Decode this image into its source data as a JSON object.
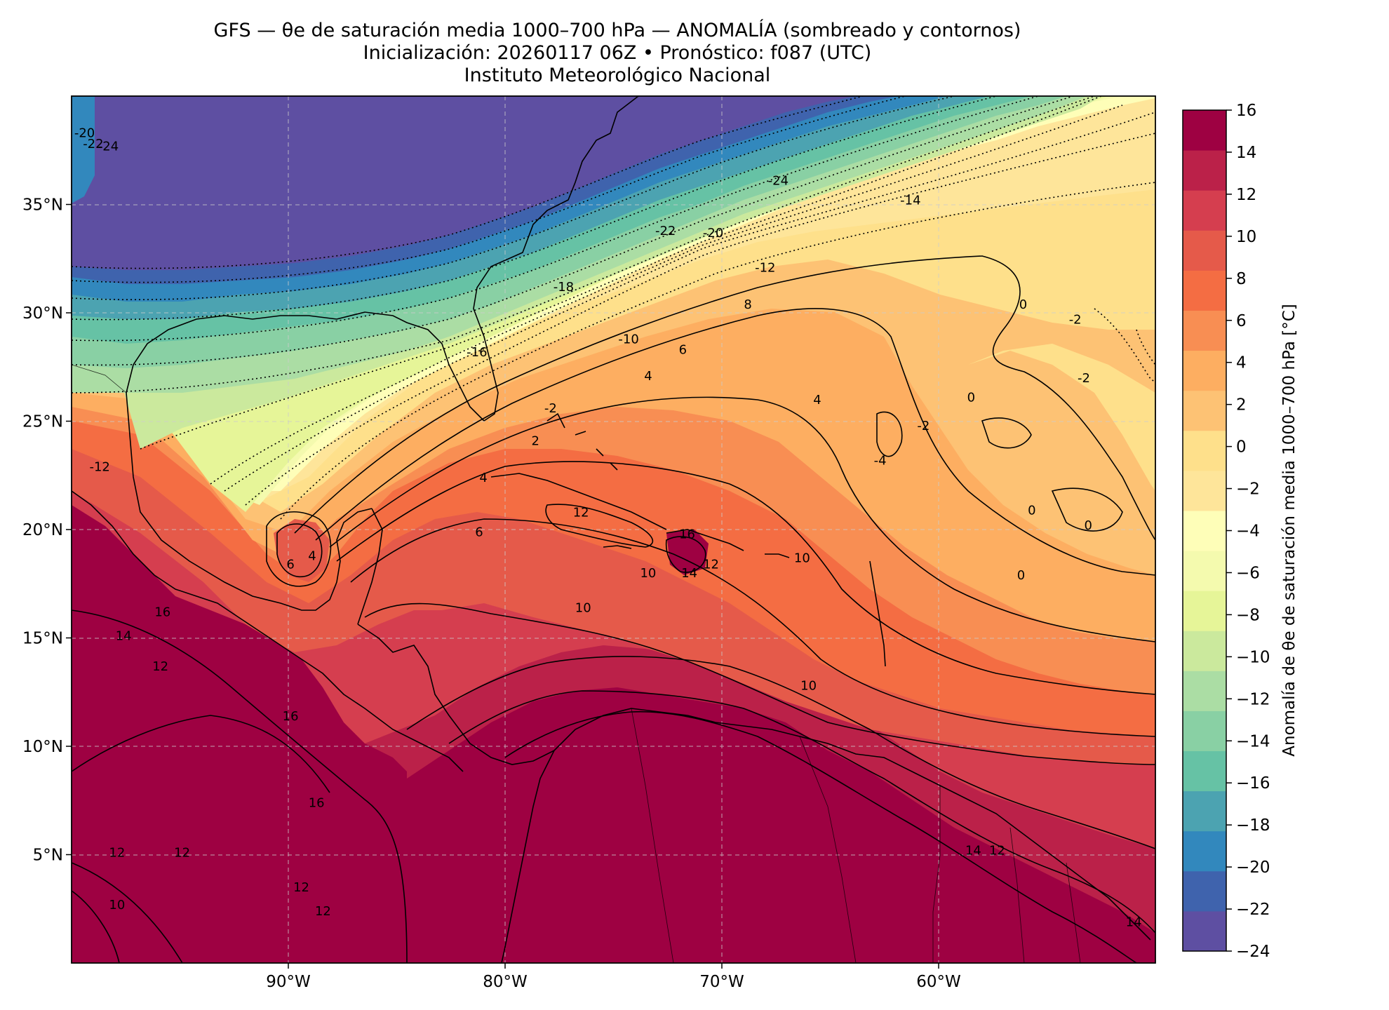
{
  "title": {
    "line1": "GFS — θe de saturación media 1000–700 hPa — ANOMALÍA (sombreado y contornos)",
    "line2": "Inicialización: 20260117 06Z   •   Pronóstico: f087 (UTC)",
    "line3": "Instituto Meteorológico Nacional"
  },
  "map": {
    "lon_range": [
      -100,
      -50
    ],
    "lat_range": [
      0,
      40
    ],
    "lon_ticks": [
      {
        "value": -90,
        "label": "90°W"
      },
      {
        "value": -80,
        "label": "80°W"
      },
      {
        "value": -70,
        "label": "70°W"
      },
      {
        "value": -60,
        "label": "60°W"
      }
    ],
    "lat_ticks": [
      {
        "value": 35,
        "label": "35°N"
      },
      {
        "value": 30,
        "label": "30°N"
      },
      {
        "value": 25,
        "label": "25°N"
      },
      {
        "value": 20,
        "label": "20°N"
      },
      {
        "value": 15,
        "label": "15°N"
      },
      {
        "value": 10,
        "label": "10°N"
      },
      {
        "value": 5,
        "label": "5°N"
      }
    ],
    "gridlines": "dashed",
    "contour_labels": [
      {
        "text": "-20",
        "lon": -99.4,
        "lat": 38.1
      },
      {
        "text": "-22",
        "lon": -99.0,
        "lat": 37.6
      },
      {
        "text": "-24",
        "lon": -98.3,
        "lat": 37.5
      },
      {
        "text": "-24",
        "lon": -67.4,
        "lat": 35.9
      },
      {
        "text": "-14",
        "lon": -61.3,
        "lat": 35.0
      },
      {
        "text": "-22",
        "lon": -72.6,
        "lat": 33.6
      },
      {
        "text": "-20",
        "lon": -70.4,
        "lat": 33.5
      },
      {
        "text": "-12",
        "lon": -68.0,
        "lat": 31.9
      },
      {
        "text": "-18",
        "lon": -77.3,
        "lat": 31.0
      },
      {
        "text": "8",
        "lon": -68.8,
        "lat": 30.2
      },
      {
        "text": "-10",
        "lon": -74.3,
        "lat": 28.6
      },
      {
        "text": "6",
        "lon": -71.8,
        "lat": 28.1
      },
      {
        "text": "-16",
        "lon": -81.3,
        "lat": 28.0
      },
      {
        "text": "4",
        "lon": -73.4,
        "lat": 26.9
      },
      {
        "text": "0",
        "lon": -56.1,
        "lat": 30.2
      },
      {
        "text": "-2",
        "lon": -53.7,
        "lat": 29.5
      },
      {
        "text": "-2",
        "lon": -53.3,
        "lat": 26.8
      },
      {
        "text": "0",
        "lon": -58.5,
        "lat": 25.9
      },
      {
        "text": "4",
        "lon": -65.6,
        "lat": 25.8
      },
      {
        "text": "-2",
        "lon": -60.7,
        "lat": 24.6
      },
      {
        "text": "-2",
        "lon": -77.9,
        "lat": 25.4
      },
      {
        "text": "2",
        "lon": -78.6,
        "lat": 23.9
      },
      {
        "text": "4",
        "lon": -81.0,
        "lat": 22.2
      },
      {
        "text": "-4",
        "lon": -62.7,
        "lat": 23.0
      },
      {
        "text": "-12",
        "lon": -98.7,
        "lat": 22.7
      },
      {
        "text": "6",
        "lon": -81.2,
        "lat": 19.7
      },
      {
        "text": "12",
        "lon": -76.5,
        "lat": 20.6
      },
      {
        "text": "16",
        "lon": -71.6,
        "lat": 19.6
      },
      {
        "text": "10",
        "lon": -66.3,
        "lat": 18.5
      },
      {
        "text": "6",
        "lon": -89.9,
        "lat": 18.2
      },
      {
        "text": "4",
        "lon": -88.9,
        "lat": 18.6
      },
      {
        "text": "10",
        "lon": -73.4,
        "lat": 17.8
      },
      {
        "text": "14",
        "lon": -71.5,
        "lat": 17.8
      },
      {
        "text": "12",
        "lon": -70.5,
        "lat": 18.2
      },
      {
        "text": "0",
        "lon": -55.7,
        "lat": 20.7
      },
      {
        "text": "0",
        "lon": -53.1,
        "lat": 20.0
      },
      {
        "text": "0",
        "lon": -56.2,
        "lat": 17.7
      },
      {
        "text": "10",
        "lon": -76.4,
        "lat": 16.2
      },
      {
        "text": "16",
        "lon": -95.8,
        "lat": 16.0
      },
      {
        "text": "14",
        "lon": -97.6,
        "lat": 14.9
      },
      {
        "text": "12",
        "lon": -95.9,
        "lat": 13.5
      },
      {
        "text": "10",
        "lon": -66.0,
        "lat": 12.6
      },
      {
        "text": "16",
        "lon": -89.9,
        "lat": 11.2
      },
      {
        "text": "16",
        "lon": -88.7,
        "lat": 7.2
      },
      {
        "text": "12",
        "lon": -97.9,
        "lat": 4.9
      },
      {
        "text": "12",
        "lon": -94.9,
        "lat": 4.9
      },
      {
        "text": "12",
        "lon": -89.4,
        "lat": 3.3
      },
      {
        "text": "12",
        "lon": -88.4,
        "lat": 2.2
      },
      {
        "text": "10",
        "lon": -97.9,
        "lat": 2.5
      },
      {
        "text": "14",
        "lon": -58.4,
        "lat": 5.0
      },
      {
        "text": "12",
        "lon": -57.3,
        "lat": 5.0
      },
      {
        "text": "14",
        "lon": -51.0,
        "lat": 1.7
      }
    ]
  },
  "colorbar": {
    "label": "Anomalía de θe de saturación media 1000–700 hPa [°C]",
    "levels": [
      -24,
      -22,
      -20,
      -18,
      -16,
      -14,
      -12,
      -10,
      -8,
      -6,
      -4,
      -2,
      0,
      2,
      4,
      6,
      8,
      10,
      12,
      14,
      16
    ],
    "tick_labels": [
      "16",
      "14",
      "12",
      "10",
      "8",
      "6",
      "4",
      "2",
      "0",
      "−2",
      "−4",
      "−6",
      "−8",
      "−10",
      "−12",
      "−14",
      "−16",
      "−18",
      "−20",
      "−22",
      "−24"
    ],
    "colors": [
      "#5e4fa2",
      "#3f63ad",
      "#3288bd",
      "#4ca3b1",
      "#66c2a5",
      "#89d0a4",
      "#abdda4",
      "#cbe99d",
      "#e6f598",
      "#f4faae",
      "#fefeb8",
      "#fee59a",
      "#fee08b",
      "#fdc274",
      "#fdae61",
      "#f88e53",
      "#f46d43",
      "#e55a4a",
      "#d53e4f",
      "#bb2149",
      "#9e0142"
    ]
  }
}
